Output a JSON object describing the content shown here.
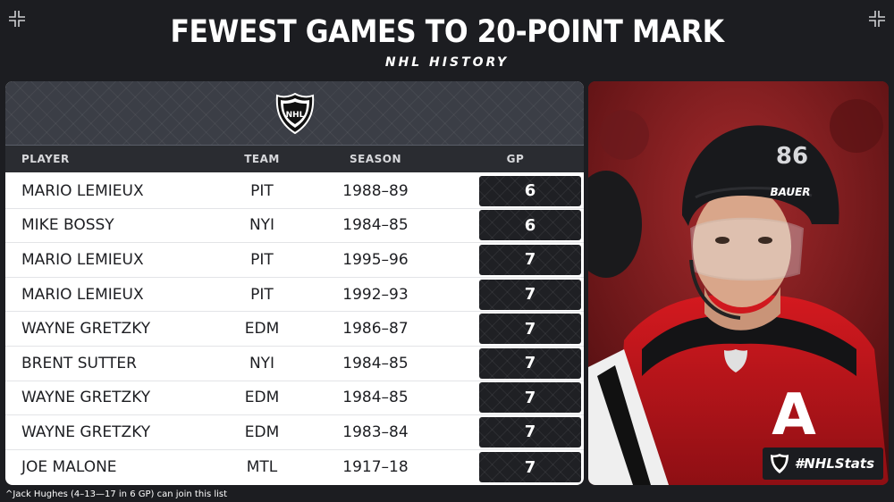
{
  "header": {
    "title": "FEWEST GAMES TO 20-POINT MARK",
    "subtitle": "NHL HISTORY"
  },
  "table": {
    "columns": {
      "player": "PLAYER",
      "team": "TEAM",
      "season": "SEASON",
      "gp": "GP"
    },
    "rows": [
      {
        "player": "MARIO LEMIEUX",
        "team": "PIT",
        "season": "1988–89",
        "gp": "6"
      },
      {
        "player": "MIKE BOSSY",
        "team": "NYI",
        "season": "1984–85",
        "gp": "6"
      },
      {
        "player": "MARIO LEMIEUX",
        "team": "PIT",
        "season": "1995–96",
        "gp": "7"
      },
      {
        "player": "MARIO LEMIEUX",
        "team": "PIT",
        "season": "1992–93",
        "gp": "7"
      },
      {
        "player": "WAYNE GRETZKY",
        "team": "EDM",
        "season": "1986–87",
        "gp": "7"
      },
      {
        "player": "BRENT SUTTER",
        "team": "NYI",
        "season": "1984–85",
        "gp": "7"
      },
      {
        "player": "WAYNE GRETZKY",
        "team": "EDM",
        "season": "1984–85",
        "gp": "7"
      },
      {
        "player": "WAYNE GRETZKY",
        "team": "EDM",
        "season": "1983–84",
        "gp": "7"
      },
      {
        "player": "JOE MALONE",
        "team": "MTL",
        "season": "1917–18",
        "gp": "7"
      }
    ]
  },
  "photo": {
    "jersey_number": "86",
    "helmet_brand": "BAUER",
    "captain_letter": "A",
    "hashtag": "#NHLStats"
  },
  "footnote": "^Jack Hughes (4–13—17 in 6 GP) can join this list",
  "logo_text": "NHL",
  "colors": {
    "background": "#1c1d21",
    "table_header": "#3b3e46",
    "gp_cell": "#1f2024",
    "jersey_red": "#c8161d"
  }
}
